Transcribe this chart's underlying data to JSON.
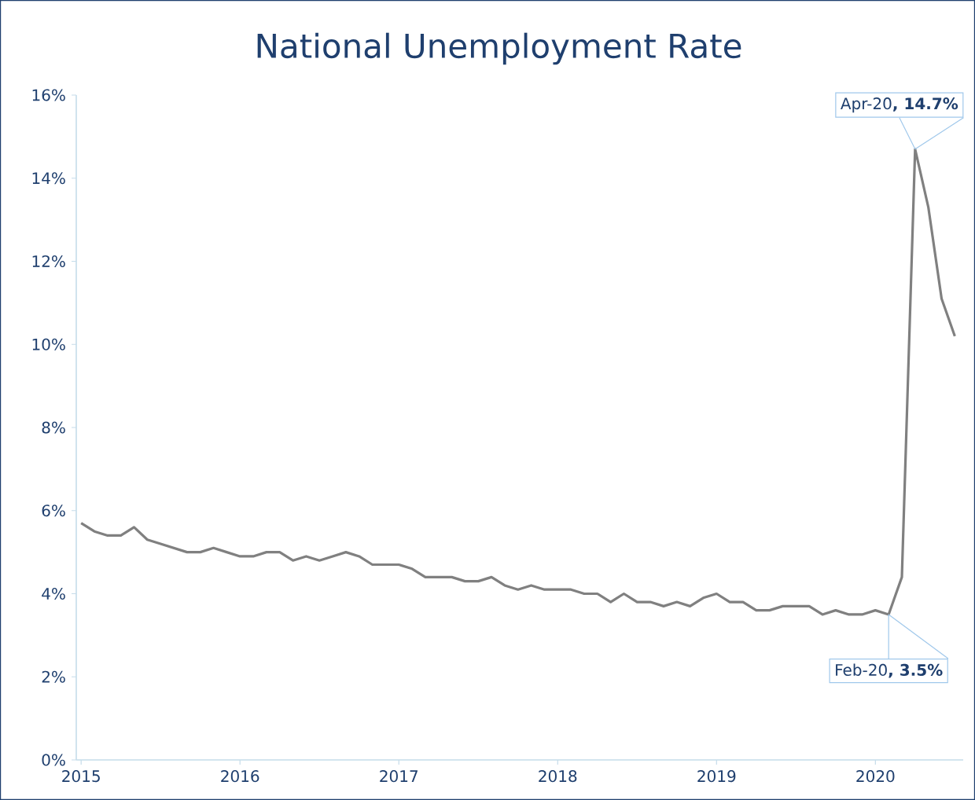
{
  "chart_data": {
    "type": "line",
    "title": "National Unemployment Rate",
    "x": [
      "2015-01",
      "2015-02",
      "2015-03",
      "2015-04",
      "2015-05",
      "2015-06",
      "2015-07",
      "2015-08",
      "2015-09",
      "2015-10",
      "2015-11",
      "2015-12",
      "2016-01",
      "2016-02",
      "2016-03",
      "2016-04",
      "2016-05",
      "2016-06",
      "2016-07",
      "2016-08",
      "2016-09",
      "2016-10",
      "2016-11",
      "2016-12",
      "2017-01",
      "2017-02",
      "2017-03",
      "2017-04",
      "2017-05",
      "2017-06",
      "2017-07",
      "2017-08",
      "2017-09",
      "2017-10",
      "2017-11",
      "2017-12",
      "2018-01",
      "2018-02",
      "2018-03",
      "2018-04",
      "2018-05",
      "2018-06",
      "2018-07",
      "2018-08",
      "2018-09",
      "2018-10",
      "2018-11",
      "2018-12",
      "2019-01",
      "2019-02",
      "2019-03",
      "2019-04",
      "2019-05",
      "2019-06",
      "2019-07",
      "2019-08",
      "2019-09",
      "2019-10",
      "2019-11",
      "2019-12",
      "2020-01",
      "2020-02",
      "2020-03",
      "2020-04",
      "2020-05",
      "2020-06",
      "2020-07"
    ],
    "series": [
      {
        "color": "#808080",
        "values": [
          5.7,
          5.5,
          5.4,
          5.4,
          5.6,
          5.3,
          5.2,
          5.1,
          5.0,
          5.0,
          5.1,
          5.0,
          4.9,
          4.9,
          5.0,
          5.0,
          4.8,
          4.9,
          4.8,
          4.9,
          5.0,
          4.9,
          4.7,
          4.7,
          4.7,
          4.6,
          4.4,
          4.4,
          4.4,
          4.3,
          4.3,
          4.4,
          4.2,
          4.1,
          4.2,
          4.1,
          4.1,
          4.1,
          4.0,
          4.0,
          3.8,
          4.0,
          3.8,
          3.8,
          3.7,
          3.8,
          3.7,
          3.9,
          4.0,
          3.8,
          3.8,
          3.6,
          3.6,
          3.7,
          3.7,
          3.7,
          3.5,
          3.6,
          3.5,
          3.5,
          3.6,
          3.5,
          4.4,
          14.7,
          13.3,
          11.1,
          10.2
        ]
      }
    ],
    "xlim": [
      "2014-12-20",
      "2020-07-20"
    ],
    "xticks": [
      "2015",
      "2016",
      "2017",
      "2018",
      "2019",
      "2020"
    ],
    "ylim": [
      0,
      16
    ],
    "yticks": [
      {
        "value": 0,
        "label": "0%"
      },
      {
        "value": 2,
        "label": "2%"
      },
      {
        "value": 4,
        "label": "4%"
      },
      {
        "value": 6,
        "label": "6%"
      },
      {
        "value": 8,
        "label": "8%"
      },
      {
        "value": 10,
        "label": "10%"
      },
      {
        "value": 12,
        "label": "12%"
      },
      {
        "value": 14,
        "label": "14%"
      },
      {
        "value": 16,
        "label": "16%"
      }
    ],
    "annotations": [
      {
        "text": "Apr-20**, 14.7%**",
        "x": "2020-04",
        "y": 14.7
      },
      {
        "text": "Feb-20**, 3.5%**",
        "x": "2020-02",
        "y": 3.5
      }
    ],
    "grid": false,
    "legend": false,
    "marker": "none",
    "line_style": "solid"
  }
}
